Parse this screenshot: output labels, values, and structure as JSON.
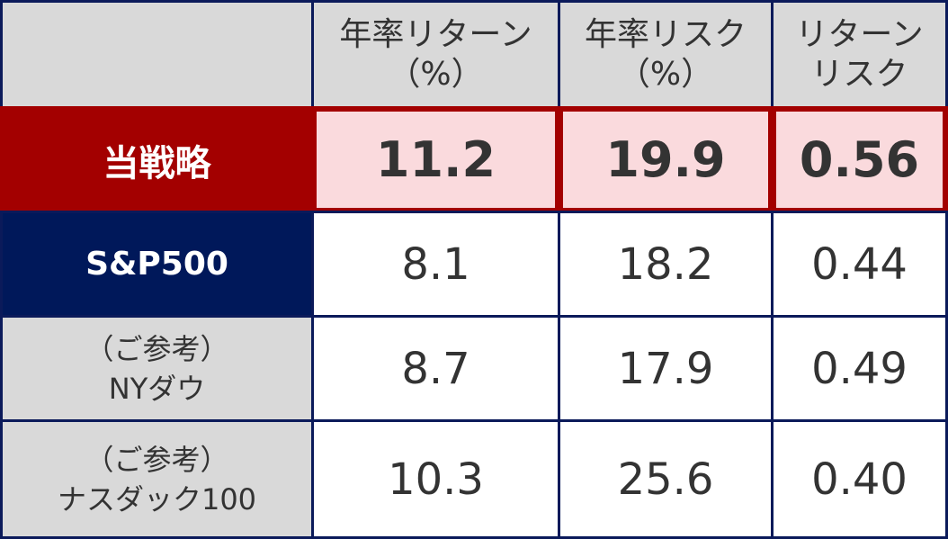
{
  "chart_data": {
    "type": "table",
    "columns": [
      {
        "line1": "",
        "line2": ""
      },
      {
        "line1": "年率リターン",
        "line2": "（%）"
      },
      {
        "line1": "年率リスク",
        "line2": "（%）"
      },
      {
        "line1": "リターン",
        "line2": "リスク"
      }
    ],
    "rows": [
      {
        "label1": "当戦略",
        "label2": "",
        "values": [
          "11.2",
          "19.9",
          "0.56"
        ]
      },
      {
        "label1": "S&P500",
        "label2": "",
        "values": [
          "8.1",
          "18.2",
          "0.44"
        ]
      },
      {
        "label1": "（ご参考）",
        "label2": "NYダウ",
        "values": [
          "8.7",
          "17.9",
          "0.49"
        ]
      },
      {
        "label1": "（ご参考）",
        "label2": "ナスダック100",
        "values": [
          "10.3",
          "25.6",
          "0.40"
        ]
      }
    ]
  },
  "colors": {
    "border": "#0b1a5a",
    "highlight": "#a30000",
    "highlight_fill": "#fadadd",
    "header_fill": "#d9d9d9",
    "sp500_fill": "#00185a"
  }
}
